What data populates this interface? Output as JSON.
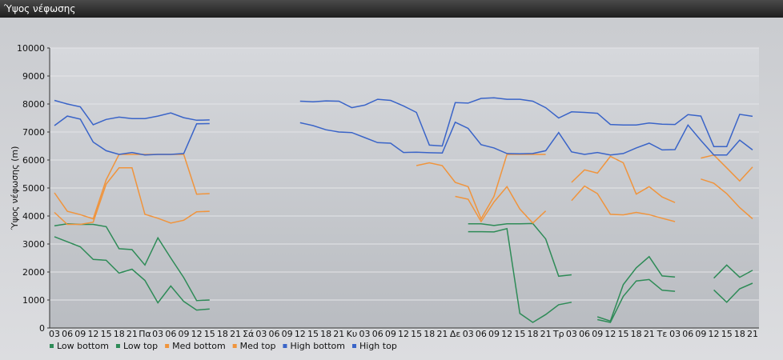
{
  "chart_data": {
    "type": "line",
    "title": "Ύψος νέφωσης",
    "y_label": "Ύψος νέφωσης (m)",
    "categories": [
      "03",
      "06",
      "09",
      "12",
      "15",
      "18",
      "21",
      "Πα",
      "03",
      "06",
      "09",
      "12",
      "15",
      "18",
      "21",
      "Σά",
      "03",
      "06",
      "09",
      "12",
      "15",
      "18",
      "21",
      "Κυ",
      "03",
      "06",
      "09",
      "12",
      "15",
      "18",
      "21",
      "Δε",
      "03",
      "06",
      "09",
      "12",
      "15",
      "18",
      "21",
      "Τρ",
      "03",
      "06",
      "09",
      "12",
      "15",
      "18",
      "21",
      "Τε",
      "03",
      "06",
      "09",
      "12",
      "15",
      "18",
      "21"
    ],
    "ylim": [
      0,
      10000
    ],
    "yticks": [
      0,
      1000,
      2000,
      3000,
      4000,
      5000,
      6000,
      7000,
      8000,
      9000,
      10000
    ],
    "grid": true,
    "series": [
      {
        "name": "Low bottom",
        "color": "#2e8b57",
        "values": [
          3260,
          3080,
          2900,
          2450,
          2420,
          1960,
          2100,
          1700,
          900,
          1500,
          950,
          640,
          680,
          null,
          null,
          null,
          null,
          null,
          null,
          null,
          null,
          null,
          null,
          null,
          null,
          null,
          null,
          null,
          null,
          null,
          null,
          null,
          3440,
          3440,
          3430,
          3550,
          520,
          200,
          480,
          830,
          920,
          null,
          300,
          200,
          1130,
          1680,
          1730,
          1350,
          1310,
          null,
          null,
          1360,
          920,
          1400,
          1600
        ]
      },
      {
        "name": "Low top",
        "color": "#2e8b57",
        "values": [
          3650,
          3720,
          3700,
          3700,
          3620,
          2830,
          2800,
          2250,
          3220,
          2500,
          1800,
          980,
          1000,
          null,
          null,
          null,
          null,
          null,
          null,
          null,
          null,
          null,
          null,
          null,
          null,
          null,
          null,
          null,
          null,
          null,
          null,
          null,
          3720,
          3720,
          3660,
          3720,
          3720,
          3730,
          3180,
          1850,
          1900,
          null,
          400,
          250,
          1550,
          2150,
          2550,
          1860,
          1820,
          null,
          null,
          1780,
          2250,
          1810,
          2060
        ]
      },
      {
        "name": "Med bottom",
        "color": "#f0943c",
        "values": [
          4130,
          3700,
          3700,
          3780,
          5140,
          5720,
          5720,
          4060,
          3920,
          3750,
          3850,
          4150,
          4170,
          null,
          null,
          null,
          null,
          null,
          null,
          null,
          null,
          null,
          null,
          null,
          null,
          null,
          null,
          null,
          null,
          null,
          null,
          4700,
          4600,
          3800,
          4500,
          5050,
          4250,
          3750,
          4180,
          null,
          4550,
          5070,
          4800,
          4060,
          4040,
          4130,
          4050,
          3920,
          3800,
          null,
          5320,
          5170,
          4800,
          4300,
          3900
        ]
      },
      {
        "name": "Med top",
        "color": "#f0943c",
        "values": [
          4830,
          4170,
          4050,
          3900,
          5290,
          6200,
          6200,
          6200,
          6200,
          6200,
          6200,
          4780,
          4800,
          null,
          null,
          null,
          null,
          null,
          null,
          null,
          null,
          null,
          null,
          null,
          null,
          null,
          null,
          null,
          5800,
          5900,
          5800,
          5200,
          5050,
          3900,
          4700,
          6200,
          6200,
          6200,
          6200,
          null,
          5200,
          5650,
          5530,
          6130,
          5900,
          4780,
          5050,
          4680,
          4480,
          null,
          6070,
          6180,
          5720,
          5250,
          5750
        ]
      },
      {
        "name": "High bottom",
        "color": "#3a64c8",
        "values": [
          7230,
          7570,
          7460,
          6640,
          6330,
          6200,
          6270,
          6180,
          6200,
          6200,
          6230,
          7290,
          7300,
          null,
          null,
          null,
          null,
          null,
          null,
          7330,
          7230,
          7080,
          7000,
          6980,
          6800,
          6620,
          6600,
          6270,
          6280,
          6260,
          6250,
          7350,
          7130,
          6550,
          6430,
          6230,
          6220,
          6230,
          6330,
          6980,
          6290,
          6200,
          6270,
          6180,
          6230,
          6430,
          6600,
          6360,
          6370,
          7250,
          6700,
          6180,
          6180,
          6710,
          6360
        ]
      },
      {
        "name": "High top",
        "color": "#3a64c8",
        "values": [
          8130,
          8000,
          7900,
          7260,
          7450,
          7530,
          7480,
          7480,
          7570,
          7680,
          7510,
          7420,
          7430,
          null,
          null,
          null,
          null,
          null,
          null,
          8100,
          8080,
          8110,
          8100,
          7870,
          7960,
          8170,
          8130,
          7930,
          7700,
          6530,
          6500,
          8050,
          8030,
          8200,
          8220,
          8170,
          8170,
          8100,
          7870,
          7500,
          7720,
          7700,
          7670,
          7270,
          7250,
          7250,
          7320,
          7280,
          7270,
          7620,
          7570,
          6480,
          6480,
          7630,
          7560
        ]
      }
    ]
  }
}
